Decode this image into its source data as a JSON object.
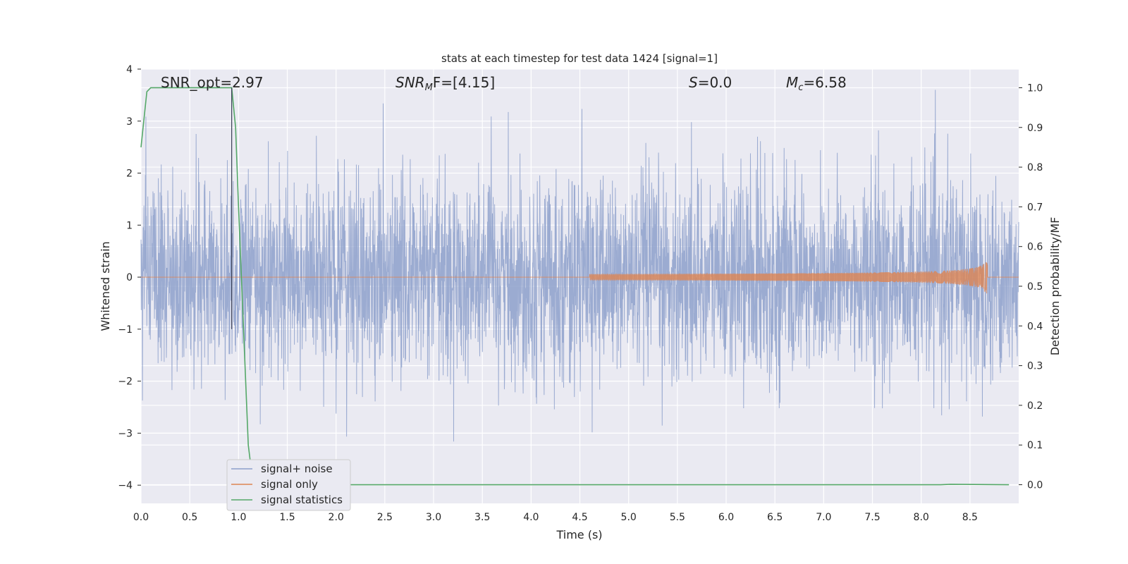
{
  "chart_data": {
    "type": "line",
    "title": "stats at each timestep for test data 1424 [signal=1]",
    "xlabel": "Time (s)",
    "ylabel": "Whitened strain",
    "y2label": "Detection probability/MF",
    "xlim": [
      0.0,
      9.0
    ],
    "ylim": [
      -4.35,
      4.0
    ],
    "y2lim": [
      -0.047,
      1.047
    ],
    "xticks": [
      "0.0",
      "0.5",
      "1.0",
      "1.5",
      "2.0",
      "2.5",
      "3.0",
      "3.5",
      "4.0",
      "4.5",
      "5.0",
      "5.5",
      "6.0",
      "6.5",
      "7.0",
      "7.5",
      "8.0",
      "8.5"
    ],
    "yticks": [
      "4",
      "3",
      "2",
      "1",
      "0",
      "−1",
      "−2",
      "−3",
      "−4"
    ],
    "y2ticks": [
      "1.0",
      "0.9",
      "0.8",
      "0.7",
      "0.6",
      "0.5",
      "0.4",
      "0.3",
      "0.2",
      "0.1",
      "0.0"
    ],
    "grid": true,
    "legend_position": "lower-left",
    "annotations": {
      "snr_opt": "SNR_opt=2.97",
      "snr_mf_prefix": "SNR",
      "snr_mf_sub": "M",
      "snr_mf_suffix": "F=[4.15]",
      "s_prefix": "S",
      "s_suffix": "=0.0",
      "mc_prefix": "M",
      "mc_sub": "c",
      "mc_suffix": "=6.58"
    },
    "marker_time": 0.93,
    "series": [
      {
        "name": "signal+ noise",
        "color": "#8da0cb",
        "description_axis": "left",
        "noise_std": 0.95,
        "noise_range": [
          -3.95,
          3.6
        ],
        "t_range": [
          0.0,
          9.0
        ]
      },
      {
        "name": "signal only",
        "color": "#dd8452",
        "description_axis": "left",
        "chirp_start": 4.6,
        "chirp_end": 8.68,
        "chirp_peak_amplitude": 0.42
      },
      {
        "name": "signal statistics",
        "color": "#55a868",
        "axis": "right",
        "x": [
          0.0,
          0.06,
          0.1,
          0.15,
          0.2,
          0.5,
          0.93,
          0.97,
          1.0,
          1.05,
          1.1,
          1.15,
          8.2,
          8.3,
          8.9
        ],
        "y": [
          0.85,
          0.99,
          1.0,
          1.0,
          1.0,
          1.0,
          1.0,
          0.9,
          0.7,
          0.4,
          0.1,
          0.0,
          0.0,
          0.001,
          0.0
        ]
      }
    ],
    "legend": [
      "signal+ noise",
      "signal only",
      "signal statistics"
    ]
  }
}
